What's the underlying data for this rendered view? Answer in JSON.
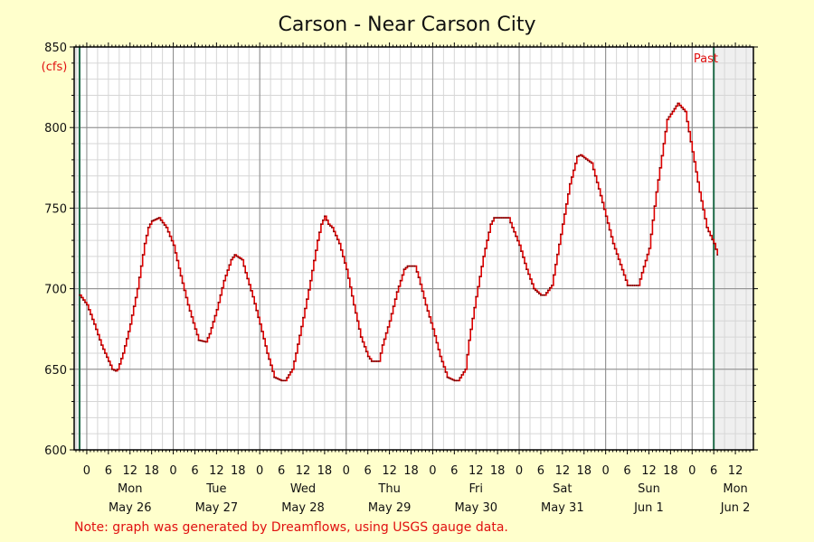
{
  "chart_data": {
    "type": "line",
    "title": "Carson - Near Carson City",
    "ylabel": "(cfs)",
    "ylim": [
      600,
      850
    ],
    "yticks": [
      "600",
      "650",
      "700",
      "750",
      "800",
      "850"
    ],
    "x_hour_range": [
      -2,
      174
    ],
    "hour_labels": [
      {
        "h": 0,
        "t": "0"
      },
      {
        "h": 6,
        "t": "6"
      },
      {
        "h": 12,
        "t": "12"
      },
      {
        "h": 18,
        "t": "18"
      },
      {
        "h": 24,
        "t": "0"
      },
      {
        "h": 30,
        "t": "6"
      },
      {
        "h": 36,
        "t": "12"
      },
      {
        "h": 42,
        "t": "18"
      },
      {
        "h": 48,
        "t": "0"
      },
      {
        "h": 54,
        "t": "6"
      },
      {
        "h": 60,
        "t": "12"
      },
      {
        "h": 66,
        "t": "18"
      },
      {
        "h": 72,
        "t": "0"
      },
      {
        "h": 78,
        "t": "6"
      },
      {
        "h": 84,
        "t": "12"
      },
      {
        "h": 90,
        "t": "18"
      },
      {
        "h": 96,
        "t": "0"
      },
      {
        "h": 102,
        "t": "6"
      },
      {
        "h": 108,
        "t": "12"
      },
      {
        "h": 114,
        "t": "18"
      },
      {
        "h": 120,
        "t": "0"
      },
      {
        "h": 126,
        "t": "6"
      },
      {
        "h": 132,
        "t": "12"
      },
      {
        "h": 138,
        "t": "18"
      },
      {
        "h": 144,
        "t": "0"
      },
      {
        "h": 150,
        "t": "6"
      },
      {
        "h": 156,
        "t": "12"
      },
      {
        "h": 162,
        "t": "18"
      },
      {
        "h": 168,
        "t": "0"
      },
      {
        "h": 174,
        "t": "6"
      },
      {
        "h": 180,
        "t": "12"
      }
    ],
    "day_labels": [
      {
        "h": 12,
        "dow": "Mon",
        "date": "May 26"
      },
      {
        "h": 36,
        "dow": "Tue",
        "date": "May 27"
      },
      {
        "h": 60,
        "dow": "Wed",
        "date": "May 28"
      },
      {
        "h": 84,
        "dow": "Thu",
        "date": "May 29"
      },
      {
        "h": 108,
        "dow": "Fri",
        "date": "May 30"
      },
      {
        "h": 132,
        "dow": "Sat",
        "date": "May 31"
      },
      {
        "h": 156,
        "dow": "Sun",
        "date": "Jun 1"
      },
      {
        "h": 180,
        "dow": "Mon",
        "date": "Jun 2"
      }
    ],
    "past_label": "Past",
    "note": "Note: graph was generated by Dreamflows, using USGS gauge data.",
    "series": [
      {
        "color": "#dd0000",
        "hours": [
          -2,
          0,
          2,
          4,
          6,
          7,
          8,
          8.5,
          10,
          12,
          14,
          16,
          17,
          18,
          20,
          22,
          24,
          26,
          28,
          30,
          31,
          33,
          34,
          36,
          38,
          40,
          41,
          43,
          44,
          46,
          48,
          50,
          52,
          54,
          55,
          57,
          58,
          60,
          62,
          64,
          65,
          66,
          67,
          68,
          70,
          72,
          74,
          76,
          78,
          79,
          81,
          82,
          84,
          86,
          88,
          89,
          91,
          92,
          94,
          96,
          98,
          100,
          102,
          103,
          105,
          106,
          108,
          110,
          112,
          113,
          117,
          118,
          120,
          122,
          124,
          126,
          127,
          129,
          130,
          132,
          134,
          136,
          137,
          140,
          142,
          144,
          146,
          148,
          150,
          151,
          153,
          154,
          156,
          158,
          160,
          161,
          164,
          166,
          168,
          170,
          172,
          174,
          175
        ],
        "values": [
          696,
          690,
          678,
          665,
          655,
          650,
          649,
          650,
          660,
          678,
          700,
          728,
          738,
          742,
          744,
          738,
          727,
          708,
          690,
          675,
          668,
          667,
          672,
          687,
          705,
          718,
          721,
          718,
          710,
          695,
          678,
          660,
          645,
          643,
          643,
          650,
          660,
          682,
          705,
          730,
          740,
          745,
          740,
          738,
          728,
          712,
          690,
          670,
          658,
          655,
          655,
          665,
          680,
          698,
          712,
          714,
          714,
          707,
          690,
          675,
          658,
          645,
          643,
          643,
          650,
          668,
          695,
          720,
          740,
          744,
          744,
          738,
          727,
          712,
          700,
          696,
          696,
          702,
          715,
          740,
          765,
          782,
          783,
          778,
          762,
          745,
          728,
          715,
          702,
          702,
          702,
          710,
          725,
          760,
          790,
          805,
          815,
          810,
          785,
          760,
          738,
          728,
          721
        ]
      }
    ]
  }
}
